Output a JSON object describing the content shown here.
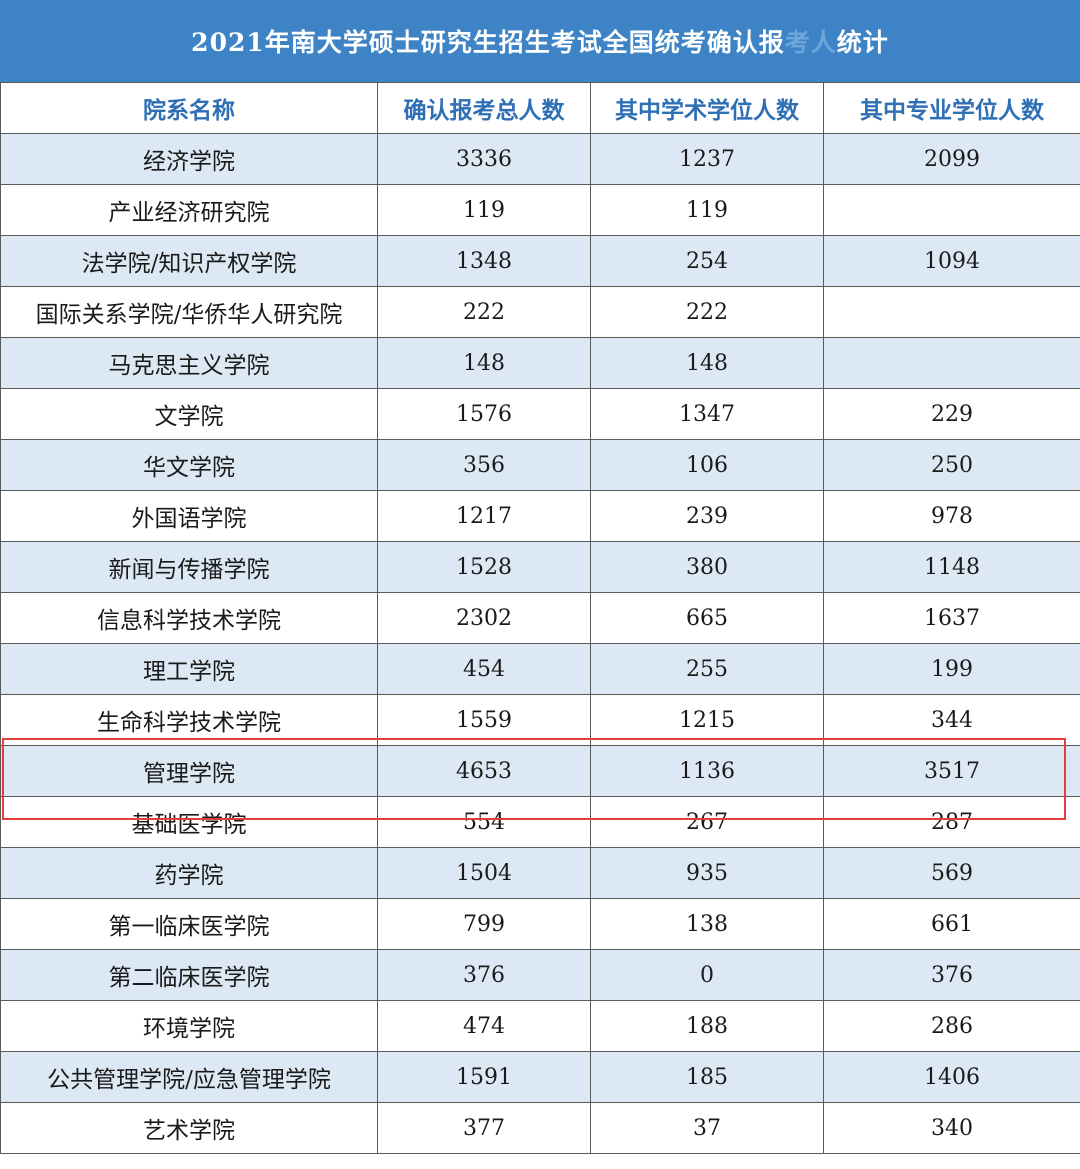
{
  "title": {
    "prefix": "2021年",
    "obscured_1": "",
    "middle": "南大学硕士研究生招生考试全国统考确认报",
    "obscured_2": "考人",
    "suffix": "统计"
  },
  "headers": [
    "院系名称",
    "确认报考总人数",
    "其中学术学位人数",
    "其中专业学位人数"
  ],
  "rows": [
    {
      "dept": "经济学院",
      "total": "3336",
      "academic": "1237",
      "professional": "2099"
    },
    {
      "dept": "产业经济研究院",
      "total": "119",
      "academic": "119",
      "professional": ""
    },
    {
      "dept": "法学院/知识产权学院",
      "total": "1348",
      "academic": "254",
      "professional": "1094"
    },
    {
      "dept": "国际关系学院/华侨华人研究院",
      "total": "222",
      "academic": "222",
      "professional": ""
    },
    {
      "dept": "马克思主义学院",
      "total": "148",
      "academic": "148",
      "professional": ""
    },
    {
      "dept": "文学院",
      "total": "1576",
      "academic": "1347",
      "professional": "229"
    },
    {
      "dept": "华文学院",
      "total": "356",
      "academic": "106",
      "professional": "250"
    },
    {
      "dept": "外国语学院",
      "total": "1217",
      "academic": "239",
      "professional": "978"
    },
    {
      "dept": "新闻与传播学院",
      "total": "1528",
      "academic": "380",
      "professional": "1148"
    },
    {
      "dept": "信息科学技术学院",
      "total": "2302",
      "academic": "665",
      "professional": "1637"
    },
    {
      "dept": "理工学院",
      "total": "454",
      "academic": "255",
      "professional": "199"
    },
    {
      "dept": "生命科学技术学院",
      "total": "1559",
      "academic": "1215",
      "professional": "344"
    },
    {
      "dept": "管理学院",
      "total": "4653",
      "academic": "1136",
      "professional": "3517"
    },
    {
      "dept": "基础医学院",
      "total": "554",
      "academic": "267",
      "professional": "287"
    },
    {
      "dept": "药学院",
      "total": "1504",
      "academic": "935",
      "professional": "569"
    },
    {
      "dept": "第一临床医学院",
      "total": "799",
      "academic": "138",
      "professional": "661"
    },
    {
      "dept": "第二临床医学院",
      "total": "376",
      "academic": "0",
      "professional": "376"
    },
    {
      "dept": "环境学院",
      "total": "474",
      "academic": "188",
      "professional": "286"
    },
    {
      "dept": "公共管理学院/应急管理学院",
      "total": "1591",
      "academic": "185",
      "professional": "1406"
    },
    {
      "dept": "艺术学院",
      "total": "377",
      "academic": "37",
      "professional": "340"
    }
  ],
  "colors": {
    "title_bg": "#3d83c5",
    "header_text": "#2f6fb5",
    "row_shade": "#dde8f5",
    "highlight_border": "#e0403c"
  }
}
